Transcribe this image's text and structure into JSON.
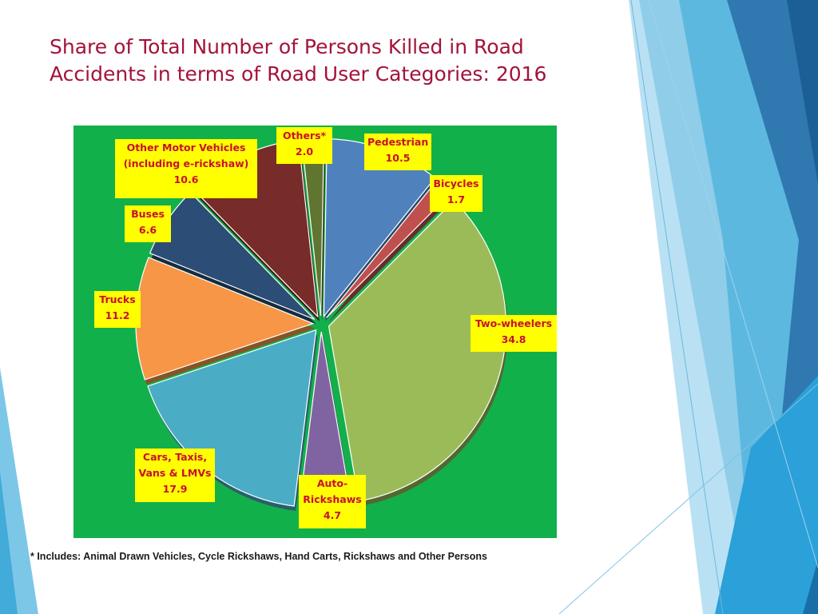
{
  "title": {
    "line1": "Share of Total Number of Persons Killed in Road",
    "line2": "Accidents in terms of Road User Categories: 2016"
  },
  "footnote": "* Includes: Animal Drawn Vehicles, Cycle Rickshaws, Hand Carts, Rickshaws and Other Persons",
  "colors": {
    "title": "#a3133a",
    "plot_background": "#12b04a",
    "label_background": "#ffff00",
    "label_text": "#c8102e"
  },
  "chart_data": {
    "type": "pie",
    "title": "Share of Total Number of Persons Killed in Road Accidents in terms of Road User Categories: 2016",
    "exploded": true,
    "slices": [
      {
        "name": "Pedestrian",
        "value": 10.5,
        "label_lines": [
          "Pedestrian",
          "10.5"
        ],
        "color": "#4f81bd"
      },
      {
        "name": "Bicycles",
        "value": 1.7,
        "label_lines": [
          "Bicycles",
          "1.7"
        ],
        "color": "#c0504d"
      },
      {
        "name": "Two-wheelers",
        "value": 34.8,
        "label_lines": [
          "Two-wheelers",
          "34.8"
        ],
        "color": "#9bbb59"
      },
      {
        "name": "Auto-Rickshaws",
        "value": 4.7,
        "label_lines": [
          "Auto-",
          "Rickshaws",
          "4.7"
        ],
        "color": "#8064a2"
      },
      {
        "name": "Cars, Taxis, Vans & LMVs",
        "value": 17.9,
        "label_lines": [
          "Cars, Taxis,",
          "Vans & LMVs",
          "17.9"
        ],
        "color": "#4bacc6"
      },
      {
        "name": "Trucks",
        "value": 11.2,
        "label_lines": [
          "Trucks",
          "11.2"
        ],
        "color": "#f79646"
      },
      {
        "name": "Buses",
        "value": 6.6,
        "label_lines": [
          "Buses",
          "6.6"
        ],
        "color": "#2c4d75"
      },
      {
        "name": "Other Motor Vehicles (including e-rickshaw)",
        "value": 10.6,
        "label_lines": [
          "Other Motor Vehicles",
          "(including e-rickshaw)",
          "10.6"
        ],
        "color": "#772c2a"
      },
      {
        "name": "Others*",
        "value": 2.0,
        "label_lines": [
          "Others*",
          "2.0"
        ],
        "color": "#5f7530"
      }
    ]
  }
}
